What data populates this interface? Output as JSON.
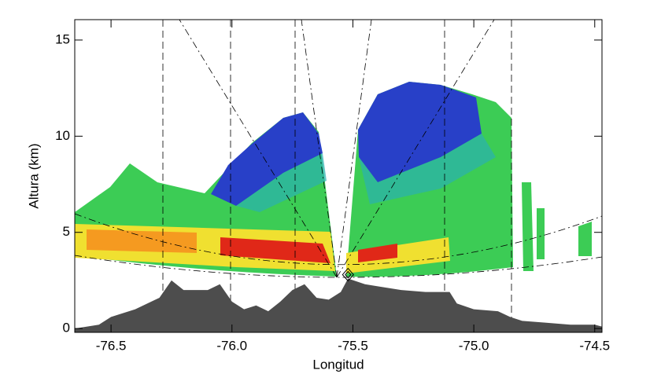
{
  "chart_data": {
    "type": "radar-rhi",
    "xlabel": "Longitud",
    "ylabel": "Altura (km)",
    "xlim": [
      -76.65,
      -74.47
    ],
    "ylim": [
      -0.2,
      16.06
    ],
    "xticks": [
      -76.5,
      {
        "value": -76,
        "label": "-76.0"
      },
      -75.5,
      {
        "value": -75,
        "label": "-75.0"
      },
      -74.5
    ],
    "yticks": [
      0,
      5,
      10,
      15
    ],
    "terrain": {
      "color": "#4d4d4d",
      "x": [
        -76.65,
        -76.55,
        -76.5,
        -76.4,
        -76.3,
        -76.25,
        -76.2,
        -76.1,
        -76.05,
        -76.0,
        -75.95,
        -75.9,
        -75.85,
        -75.8,
        -75.75,
        -75.7,
        -75.65,
        -75.6,
        -75.55,
        -75.52,
        -75.45,
        -75.4,
        -75.3,
        -75.2,
        -75.1,
        -75.07,
        -75.0,
        -74.9,
        -74.85,
        -74.8,
        -74.7,
        -74.6,
        -74.5,
        -74.47
      ],
      "values": [
        0,
        0.2,
        0.6,
        1.0,
        1.6,
        2.5,
        2.0,
        2.0,
        2.3,
        1.4,
        1.0,
        1.2,
        0.9,
        1.4,
        2.0,
        2.3,
        1.6,
        1.5,
        1.9,
        2.6,
        2.3,
        2.2,
        2.0,
        1.9,
        1.9,
        1.3,
        1.0,
        0.9,
        0.6,
        0.4,
        0.3,
        0.2,
        0.2,
        0.1
      ]
    },
    "radar": {
      "x": -75.52,
      "y": 2.8
    }
  }
}
